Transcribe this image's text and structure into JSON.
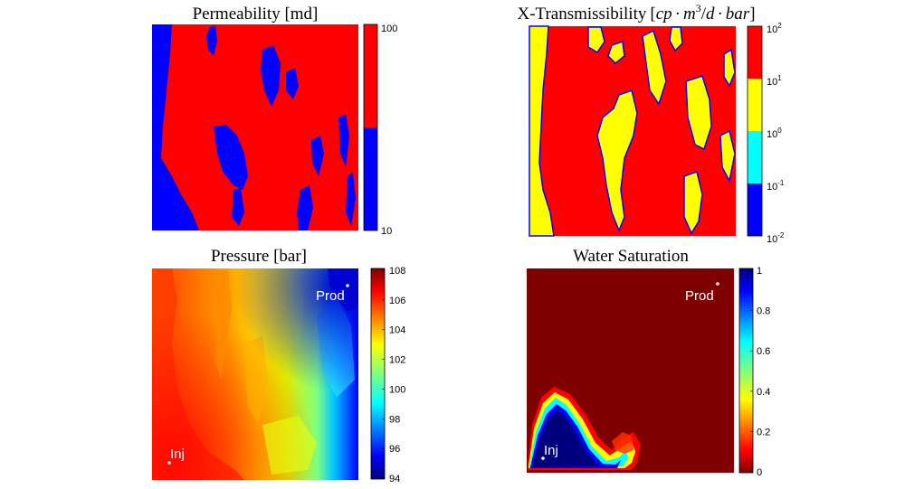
{
  "colors": {
    "red": "#ff0000",
    "blue": "#0000ff",
    "yellow": "#ffff00",
    "cyan": "#00ffff",
    "jet_dark_red": "#7f0000",
    "jet_dark_blue": "#00007f"
  },
  "chart_data": [
    {
      "type": "heatmap",
      "title": "Permeability [md]",
      "colorbar": {
        "scale": "linear",
        "range": [
          10,
          100
        ],
        "ticks": [
          "100",
          "10"
        ],
        "levels": [
          {
            "value": 10,
            "color": "#0000ff"
          },
          {
            "value": 100,
            "color": "#ff0000"
          }
        ]
      },
      "colormap": "two-level",
      "grid": false
    },
    {
      "type": "heatmap",
      "title": "X-Transmissibility",
      "title_math": "[cp · m3/d · bar]",
      "title_parts": {
        "lead": "X-Transmissibility",
        "open": "[",
        "cp": "cp",
        "dot1": "·",
        "m": "m",
        "m_exp": "3",
        "slash": "/",
        "d": "d",
        "dot2": "·",
        "bar": "bar",
        "close": "]"
      },
      "colorbar": {
        "scale": "log",
        "range": [
          0.01,
          100
        ],
        "ticks": [
          {
            "base": "10",
            "exp": "2"
          },
          {
            "base": "10",
            "exp": "1"
          },
          {
            "base": "10",
            "exp": "0"
          },
          {
            "base": "10",
            "exp": "-1"
          },
          {
            "base": "10",
            "exp": "-2"
          }
        ],
        "levels": [
          {
            "range": [
              10,
              100
            ],
            "color": "#ff0000"
          },
          {
            "range": [
              1,
              10
            ],
            "color": "#ffff00"
          },
          {
            "range": [
              0.1,
              1
            ],
            "color": "#00ffff"
          },
          {
            "range": [
              0.01,
              0.1
            ],
            "color": "#0000ff"
          }
        ]
      },
      "grid": false
    },
    {
      "type": "heatmap",
      "title": "Pressure [bar]",
      "colormap": "jet",
      "colorbar": {
        "range": [
          94,
          108
        ],
        "ticks": [
          "108",
          "106",
          "104",
          "102",
          "100",
          "98",
          "96",
          "94"
        ]
      },
      "annotations": [
        {
          "label": "Prod",
          "well": "producer"
        },
        {
          "label": "Inj",
          "well": "injector"
        }
      ]
    },
    {
      "type": "heatmap",
      "title": "Water Saturation",
      "colormap": "jet_reversed",
      "colorbar": {
        "range": [
          0,
          1
        ],
        "ticks": [
          "1",
          "0.8",
          "0.6",
          "0.4",
          "0.2",
          "0"
        ]
      },
      "annotations": [
        {
          "label": "Prod",
          "well": "producer"
        },
        {
          "label": "Inj",
          "well": "injector"
        }
      ]
    }
  ]
}
